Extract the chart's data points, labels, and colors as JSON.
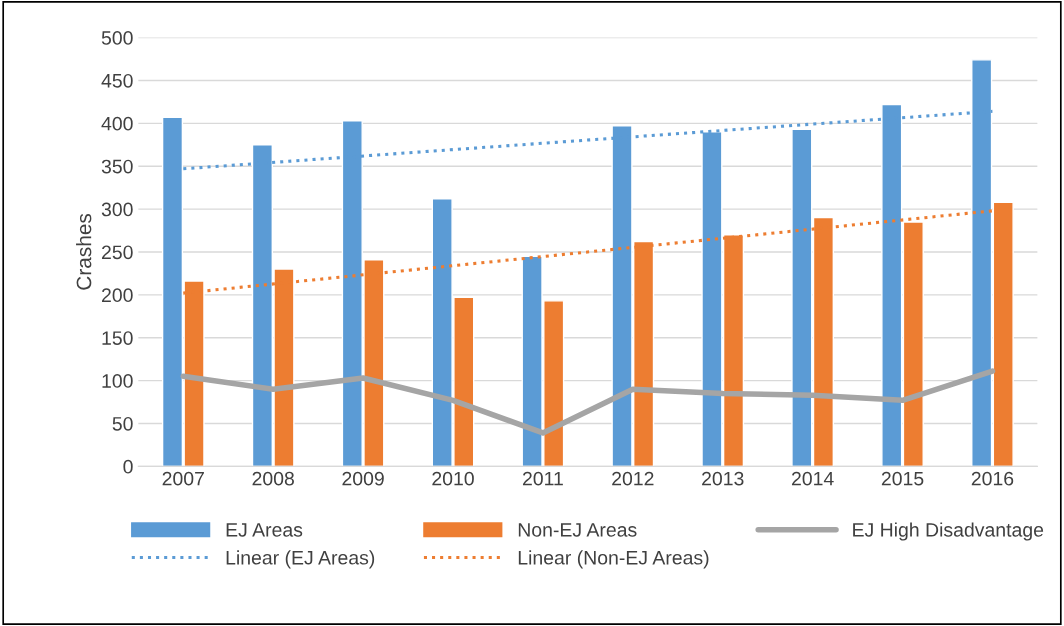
{
  "chart_data": {
    "type": "bar",
    "ylabel": "Crashes",
    "categories": [
      "2007",
      "2008",
      "2009",
      "2010",
      "2011",
      "2012",
      "2013",
      "2014",
      "2015",
      "2016"
    ],
    "series": [
      {
        "name": "EJ Areas",
        "color": "#5b9bd5",
        "values": [
          407,
          375,
          403,
          312,
          245,
          397,
          390,
          393,
          422,
          474
        ]
      },
      {
        "name": "Non-EJ Areas",
        "color": "#ed7d31",
        "values": [
          216,
          230,
          241,
          197,
          193,
          262,
          270,
          290,
          285,
          308
        ]
      },
      {
        "name": "EJ High Disadvantage",
        "type": "line",
        "color": "#a5a5a5",
        "line_style": "solid",
        "values": [
          105,
          90,
          103,
          77,
          39,
          90,
          85,
          83,
          77,
          111
        ]
      },
      {
        "name": "Linear (EJ Areas)",
        "type": "line",
        "color": "#5b9bd5",
        "line_style": "dotted",
        "values": [
          347,
          null,
          null,
          null,
          null,
          null,
          null,
          null,
          null,
          414
        ]
      },
      {
        "name": "Linear (Non-EJ Areas)",
        "type": "line",
        "color": "#ed7d31",
        "line_style": "dotted",
        "values": [
          202,
          null,
          null,
          null,
          null,
          null,
          null,
          null,
          null,
          298
        ]
      }
    ],
    "ylim": [
      0,
      500
    ],
    "yticks": [
      0,
      50,
      100,
      150,
      200,
      250,
      300,
      350,
      400,
      450,
      500
    ],
    "grid": "y",
    "legend": "bottom"
  }
}
